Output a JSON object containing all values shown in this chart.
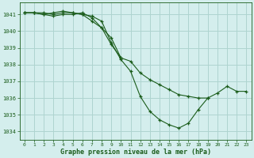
{
  "title": "Graphe pression niveau de la mer (hPa)",
  "bg_color": "#d4eeed",
  "grid_color": "#aed4d0",
  "line_color": "#1a5c1a",
  "xlim": [
    -0.5,
    23.5
  ],
  "ylim": [
    1033.5,
    1041.7
  ],
  "yticks": [
    1034,
    1035,
    1036,
    1037,
    1038,
    1039,
    1040,
    1041
  ],
  "xticks": [
    0,
    1,
    2,
    3,
    4,
    5,
    6,
    7,
    8,
    9,
    10,
    11,
    12,
    13,
    14,
    15,
    16,
    17,
    18,
    19,
    20,
    21,
    22,
    23
  ],
  "series": [
    {
      "x": [
        0,
        1,
        2,
        3,
        4,
        5,
        6,
        7,
        8,
        9,
        10,
        11,
        12,
        13,
        14,
        15,
        16,
        17,
        18,
        19,
        20,
        21,
        22,
        23
      ],
      "y": [
        1041.1,
        1041.1,
        1041.1,
        1041.0,
        1041.1,
        1041.1,
        1041.0,
        1040.9,
        1040.6,
        1039.3,
        1038.3,
        1037.6,
        1036.1,
        1035.2,
        1034.7,
        1034.4,
        1034.2,
        1034.5,
        1035.3,
        1036.0,
        1036.3,
        1036.7,
        1036.4,
        1036.4
      ]
    },
    {
      "x": [
        0,
        1,
        2,
        3,
        4,
        5,
        6,
        7,
        8,
        9,
        10,
        11,
        12,
        13,
        14,
        15,
        16,
        17,
        18,
        19
      ],
      "y": [
        1041.1,
        1041.1,
        1041.0,
        1040.9,
        1041.0,
        1041.0,
        1041.1,
        1040.8,
        1040.2,
        1039.2,
        1038.4,
        1038.2,
        1037.5,
        1037.1,
        1036.8,
        1036.5,
        1036.2,
        1036.1,
        1036.0,
        1036.0
      ]
    },
    {
      "x": [
        0,
        1,
        2,
        3,
        4,
        5,
        6,
        7,
        8,
        9,
        10
      ],
      "y": [
        1041.1,
        1041.1,
        1041.0,
        1041.1,
        1041.2,
        1041.1,
        1041.0,
        1040.6,
        1040.2,
        1039.6,
        1038.4
      ]
    }
  ]
}
